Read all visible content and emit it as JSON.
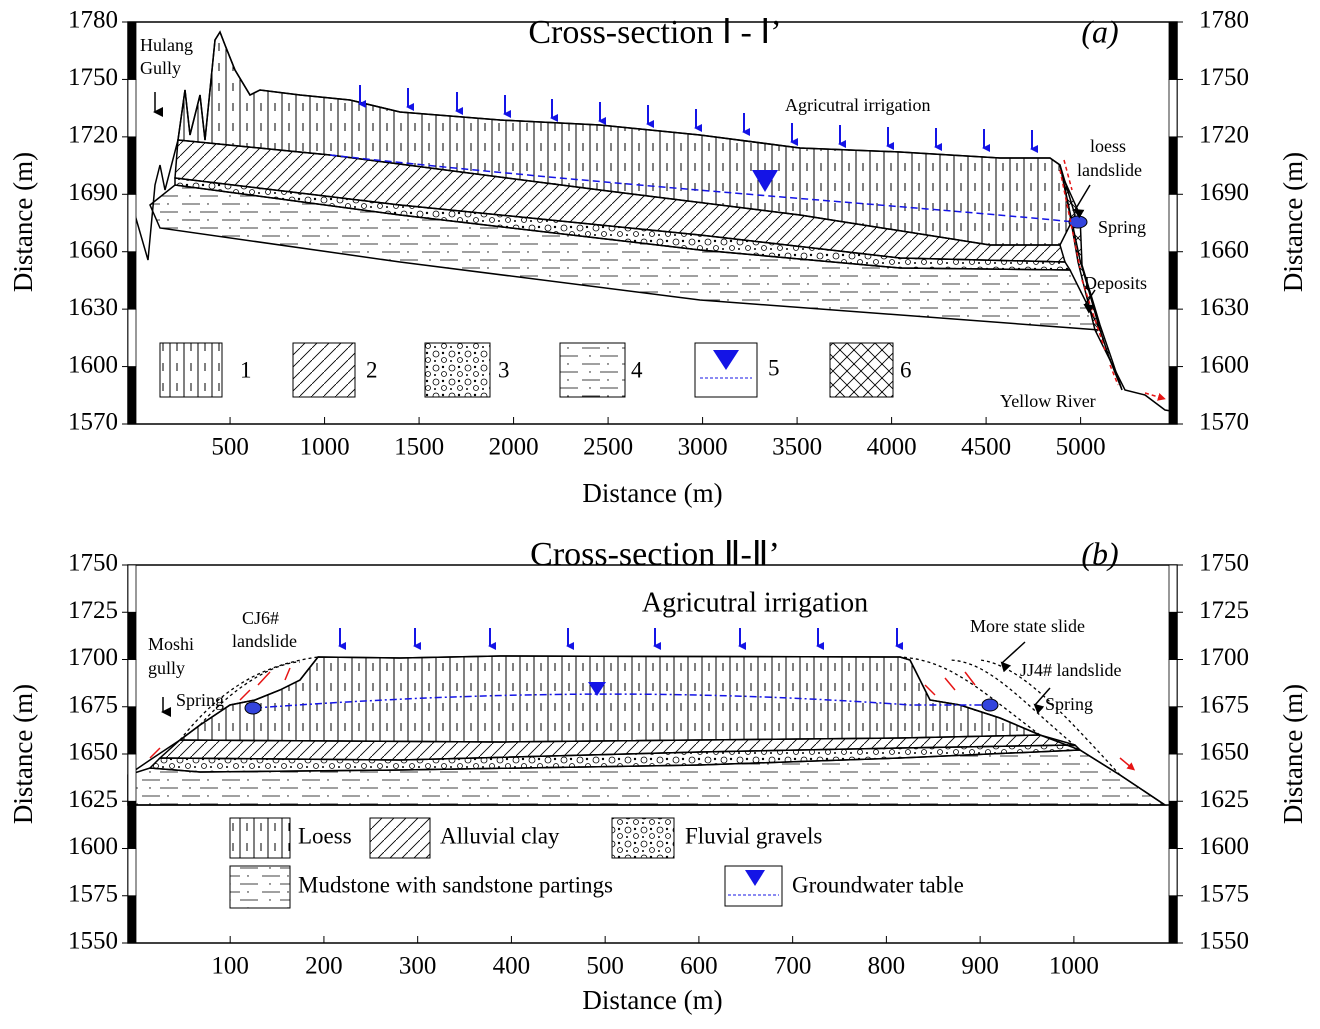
{
  "panels": [
    {
      "title": "Cross-section Ⅰ - Ⅰ’",
      "label": "(a)",
      "x_label": "Distance (m)",
      "y_label": "Distance (m)",
      "xlim": [
        -40,
        5510
      ],
      "ylim": [
        1570,
        1780
      ],
      "xticks": [
        500,
        1000,
        1500,
        2000,
        2500,
        3000,
        3500,
        4000,
        4500,
        5000
      ],
      "yticks": [
        1570,
        1600,
        1630,
        1660,
        1690,
        1720,
        1750,
        1780
      ],
      "annotations": {
        "gully": [
          "Hulang",
          "Gully"
        ],
        "irrigation": "Agricutral irrigation",
        "landslide": [
          "loess",
          "landslide"
        ],
        "spring": "Spring",
        "deposits": "Deposits",
        "river": "Yellow River"
      },
      "legend": [
        "1",
        "2",
        "3",
        "4",
        "5",
        "6"
      ]
    },
    {
      "title": "Cross-section Ⅱ-Ⅱ’",
      "label": "(b)",
      "x_label": "Distance (m)",
      "y_label": "Distance (m)",
      "xlim": [
        -9,
        1110
      ],
      "ylim": [
        1550,
        1750
      ],
      "xticks": [
        100,
        200,
        300,
        400,
        500,
        600,
        700,
        800,
        900,
        1000
      ],
      "yticks": [
        1550,
        1575,
        1600,
        1625,
        1650,
        1675,
        1700,
        1725,
        1750
      ],
      "annotations": {
        "irrigation": "Agricutral irrigation",
        "cj6": [
          "CJ6#",
          "landslide"
        ],
        "gully": [
          "Moshi",
          "gully"
        ],
        "spring_left": "Spring",
        "more_state": "More state slide",
        "jj4": "JJ4# landslide",
        "spring_right": "Spring"
      },
      "legend": [
        "Loess",
        "Alluvial clay",
        "Fluvial gravels",
        "Mudstone with sandstone partings",
        "Groundwater table"
      ]
    }
  ]
}
